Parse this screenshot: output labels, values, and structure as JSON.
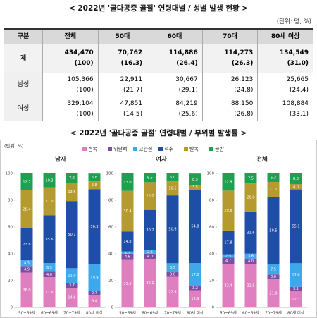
{
  "header": {
    "title": "< 2022년 '골다공증 골절' 연령대별 / 성별 발생 현황 >",
    "unit": "(단위: 명, %)"
  },
  "table": {
    "header": [
      "구분",
      "전체",
      "50대",
      "60대",
      "70대",
      "80세 이상"
    ],
    "rows": [
      {
        "label": "계",
        "counts": [
          "434,470",
          "70,762",
          "114,886",
          "114,273",
          "134,549"
        ],
        "shares": [
          "(100)",
          "(16.3)",
          "(26.4)",
          "(26.3)",
          "(31.0)"
        ]
      },
      {
        "label": "남성",
        "counts": [
          "105,366",
          "22,911",
          "30,667",
          "26,123",
          "25,665"
        ],
        "shares": [
          "(100)",
          "(21.7)",
          "(29.1)",
          "(24.8)",
          "(24.4)"
        ]
      },
      {
        "label": "여성",
        "counts": [
          "329,104",
          "47,851",
          "84,219",
          "88,150",
          "108,884"
        ],
        "shares": [
          "(100)",
          "(14.5)",
          "(25.6)",
          "(26.8)",
          "(33.1)"
        ]
      }
    ]
  },
  "chart_section": {
    "title": "< 2022년 '골다공증 골절' 연령대별 / 부위별 발생률 >",
    "unit": "(단위: %)"
  },
  "chart_data": [
    {
      "type": "stacked_bar",
      "title": "남자",
      "categories": [
        "50~69세",
        "60~69세",
        "70~79세",
        "80세 이상"
      ],
      "ylim": [
        0,
        100
      ],
      "yticks": [
        0,
        20,
        40,
        60,
        80,
        100
      ],
      "series": [
        {
          "name": "손목",
          "color": "#e07fc0",
          "values": [
            26.0,
            22.6,
            14.6,
            9.4
          ],
          "value_labels": [
            "26.0",
            "22.6",
            "14.6",
            "9.4"
          ]
        },
        {
          "name": "위팔뼈",
          "color": "#7b4fa3",
          "values": [
            4.9,
            4.0,
            3.7,
            2.7
          ],
          "value_labels": [
            "4.9",
            "4.0",
            "3.7",
            "2.7"
          ]
        },
        {
          "name": "고관절",
          "color": "#3ea8ea",
          "values": [
            4.3,
            6.5,
            11.0,
            19.9
          ],
          "value_labels": [
            "4.3",
            "6.5",
            "11.0",
            "19.9"
          ]
        },
        {
          "name": "척추",
          "color": "#1f4ea8",
          "values": [
            23.8,
            35.6,
            50.1,
            56.3
          ],
          "value_labels": [
            "23.8",
            "35.6",
            "50.1",
            "56.3"
          ]
        },
        {
          "name": "발목",
          "color": "#b59a2f",
          "values": [
            28.4,
            21.0,
            13.5,
            5.8
          ],
          "value_labels": [
            "28.4",
            "21.0",
            "13.5",
            "5.8"
          ]
        },
        {
          "name": "골반",
          "color": "#1fa050",
          "values": [
            12.7,
            10.3,
            7.2,
            5.8
          ],
          "value_labels": [
            "12.7",
            "10.3",
            "7.2",
            "5.8"
          ]
        }
      ]
    },
    {
      "type": "stacked_bar",
      "title": "여자",
      "categories": [
        "50~69세",
        "60~69세",
        "70~79세",
        "80세 이상"
      ],
      "ylim": [
        0,
        100
      ],
      "yticks": [
        0,
        20,
        40,
        60,
        80,
        100
      ],
      "series": [
        {
          "name": "손목",
          "color": "#e07fc0",
          "values": [
            35.5,
            36.1,
            22.9,
            12.9
          ],
          "value_labels": [
            "35.5",
            "36.1",
            "22.9",
            "12.9"
          ]
        },
        {
          "name": "위팔뼈",
          "color": "#7b4fa3",
          "values": [
            4.6,
            4.0,
            3.6,
            3.2
          ],
          "value_labels": [
            "4.6",
            "4.0",
            "3.6",
            "3.2"
          ]
        },
        {
          "name": "고관절",
          "color": "#3ea8ea",
          "values": [
            1.7,
            2.5,
            6.5,
            17.0
          ],
          "value_labels": [
            "1.7",
            "2.5",
            "6.5",
            "17.0"
          ]
        },
        {
          "name": "척추",
          "color": "#1f4ea8",
          "values": [
            14.8,
            30.2,
            50.6,
            54.8
          ],
          "value_labels": [
            "14.8",
            "30.2",
            "50.6",
            "54.8"
          ]
        },
        {
          "name": "발목",
          "color": "#b59a2f",
          "values": [
            30.4,
            20.7,
            10.5,
            3.5
          ],
          "value_labels": [
            "30.4",
            "20.7",
            "10.5",
            "3.5"
          ]
        },
        {
          "name": "골반",
          "color": "#1fa050",
          "values": [
            13.0,
            6.5,
            6.0,
            8.5
          ],
          "value_labels": [
            "13.0",
            "6.5",
            "6.0",
            "8.5"
          ]
        }
      ]
    },
    {
      "type": "stacked_bar",
      "title": "전체",
      "categories": [
        "50~69세",
        "60~69세",
        "70~79세",
        "80세 이상"
      ],
      "ylim": [
        0,
        100
      ],
      "yticks": [
        0,
        20,
        40,
        60,
        80,
        100
      ],
      "series": [
        {
          "name": "손목",
          "color": "#e07fc0",
          "values": [
            32.4,
            32.5,
            21.0,
            12.3
          ],
          "value_labels": [
            "32.4",
            "32.5",
            "21.0",
            "12.3"
          ]
        },
        {
          "name": "위팔뼈",
          "color": "#7b4fa3",
          "values": [
            4.7,
            4.0,
            3.6,
            3.1
          ],
          "value_labels": [
            "4.7",
            "4.0",
            "3.6",
            "3.1"
          ]
        },
        {
          "name": "고관절",
          "color": "#3ea8ea",
          "values": [
            2.5,
            3.6,
            7.5,
            17.6
          ],
          "value_labels": [
            "2.5",
            "3.6",
            "7.5",
            "17.6"
          ]
        },
        {
          "name": "척추",
          "color": "#1f4ea8",
          "values": [
            17.8,
            31.6,
            50.5,
            55.1
          ],
          "value_labels": [
            "17.8",
            "31.6",
            "50.5",
            "55.1"
          ]
        },
        {
          "name": "발목",
          "color": "#b59a2f",
          "values": [
            29.8,
            20.8,
            11.1,
            4.0
          ],
          "value_labels": [
            "29.8",
            "20.8",
            "11.1",
            "4.0"
          ]
        },
        {
          "name": "골반",
          "color": "#1fa050",
          "values": [
            12.9,
            7.5,
            6.3,
            8.0
          ],
          "value_labels": [
            "12.9",
            "7.5",
            "6.3",
            "8.0"
          ]
        }
      ]
    }
  ]
}
